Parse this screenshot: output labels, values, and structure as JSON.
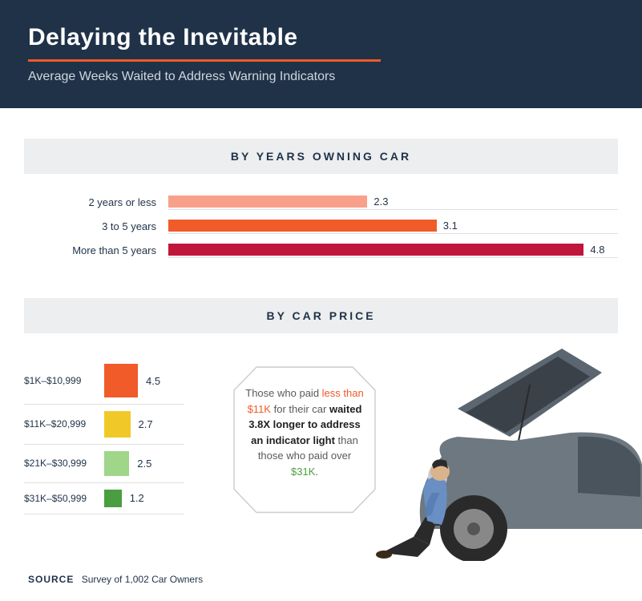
{
  "header": {
    "title": "Delaying the Inevitable",
    "subtitle": "Average Weeks Waited to Address Warning Indicators",
    "bg_color": "#1f3248",
    "underline_color": "#f15a29",
    "title_color": "#ffffff",
    "subtitle_color": "#d0d6dd"
  },
  "section1": {
    "header": "BY YEARS OWNING CAR",
    "max_value": 5.0,
    "rows": [
      {
        "label": "2 years or less",
        "value": 2.3,
        "color": "#f9a08a"
      },
      {
        "label": "3 to 5 years",
        "value": 3.1,
        "color": "#f15a29"
      },
      {
        "label": "More than 5 years",
        "value": 4.8,
        "color": "#c0163a"
      }
    ]
  },
  "section2": {
    "header": "BY CAR PRICE",
    "max_value": 4.5,
    "max_size": 42,
    "rows": [
      {
        "label": "$1K–$10,999",
        "value": 4.5,
        "color": "#f15a29"
      },
      {
        "label": "$11K–$20,999",
        "value": 2.7,
        "color": "#f0c929"
      },
      {
        "label": "$21K–$30,999",
        "value": 2.5,
        "color": "#9fd68a"
      },
      {
        "label": "$31K–$50,999",
        "value": 1.2,
        "color": "#4a9e3f"
      }
    ]
  },
  "callout": {
    "pre": "Those who paid",
    "hl1": "less than $11K",
    "mid1": " for their car ",
    "bold": "waited 3.8X longer to address an indicator light",
    "mid2": " than those who paid over ",
    "hl2": "$31K",
    "post": "."
  },
  "source": {
    "label": "SOURCE",
    "text": "Survey of 1,002 Car Owners"
  },
  "section_header_bg": "#eceef0"
}
